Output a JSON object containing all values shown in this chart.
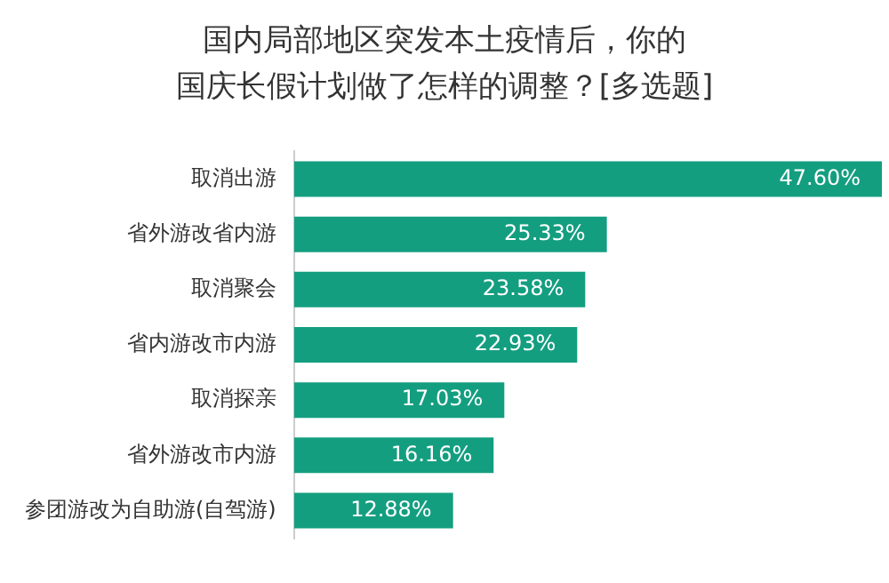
{
  "chart_data": {
    "type": "bar",
    "orientation": "horizontal",
    "title": "国内局部地区突发本土疫情后，你的国庆长假计划做了怎样的调整？[多选题]",
    "categories": [
      "取消出游",
      "省外游改省内游",
      "取消聚会",
      "省内游改市内游",
      "取消探亲",
      "省外游改市内游",
      "参团游改为自助游(自驾游)"
    ],
    "values": [
      47.6,
      25.33,
      23.58,
      22.93,
      17.03,
      16.16,
      12.88
    ],
    "value_labels": [
      "47.60%",
      "25.33%",
      "23.58%",
      "22.93%",
      "17.03%",
      "16.16%",
      "12.88%"
    ],
    "color": "#149e80"
  }
}
